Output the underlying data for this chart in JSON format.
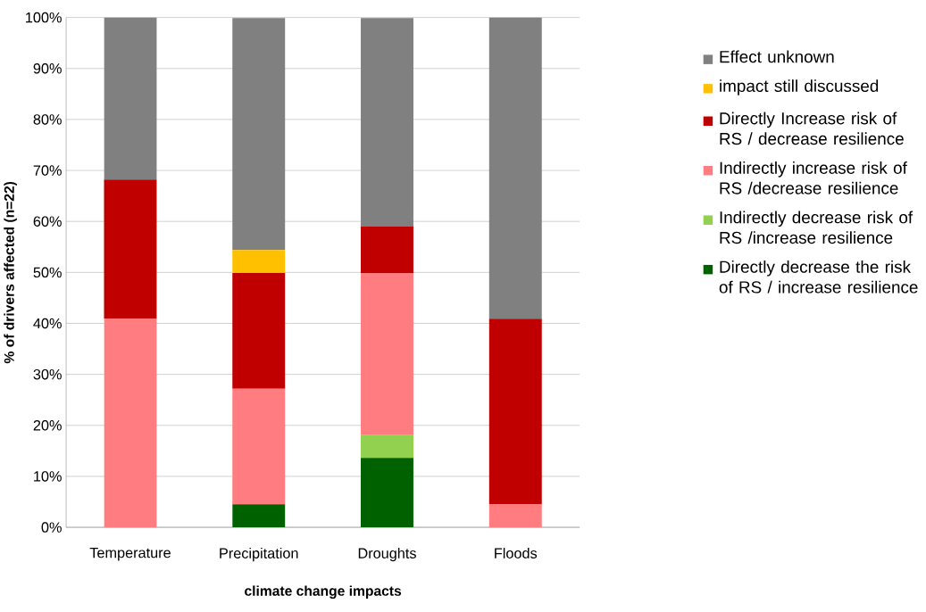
{
  "chart_data": {
    "type": "bar",
    "stacked": true,
    "xlabel": "climate change impacts",
    "ylabel": "% of drivers affected (n=22)",
    "categories": [
      "Temperature",
      "Precipitation",
      "Droughts",
      "Floods"
    ],
    "ylim": [
      0,
      100
    ],
    "yticks": [
      {
        "value": 0,
        "label": "0%"
      },
      {
        "value": 10,
        "label": "10%"
      },
      {
        "value": 20,
        "label": "20%"
      },
      {
        "value": 30,
        "label": "30%"
      },
      {
        "value": 40,
        "label": "40%"
      },
      {
        "value": 50,
        "label": "50%"
      },
      {
        "value": 60,
        "label": "60%"
      },
      {
        "value": 70,
        "label": "70%"
      },
      {
        "value": 80,
        "label": "80%"
      },
      {
        "value": 90,
        "label": "90%"
      },
      {
        "value": 100,
        "label": "100%"
      }
    ],
    "grid": "y",
    "legend": "right",
    "series": [
      {
        "name": "Directly decrease the risk of RS / increase resilience",
        "color": "#006100",
        "values": [
          0,
          4.5,
          13.6,
          0
        ]
      },
      {
        "name": "Indirectly decrease risk of RS /increase resilience",
        "color": "#92d050",
        "values": [
          0,
          0,
          4.5,
          0
        ]
      },
      {
        "name": "Indirectly increase risk of RS /decrease resilience",
        "color": "#ff7c80",
        "values": [
          40.9,
          22.7,
          31.8,
          4.5
        ]
      },
      {
        "name": "Directly Increase risk of RS / decrease resilience",
        "color": "#c00000",
        "values": [
          27.3,
          22.7,
          9.1,
          36.4
        ]
      },
      {
        "name": "impact still discussed",
        "color": "#ffc000",
        "values": [
          0,
          4.5,
          0,
          0
        ]
      },
      {
        "name": "Effect unknown",
        "color": "#808080",
        "values": [
          31.8,
          45.5,
          40.9,
          59.1
        ]
      }
    ]
  }
}
